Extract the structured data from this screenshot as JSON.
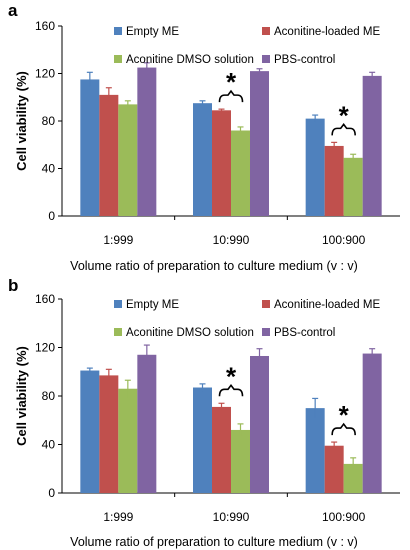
{
  "chart_data": [
    {
      "type": "bar",
      "panel": "a",
      "ylabel": "Cell viability (%)",
      "xlabel": "Volume ratio of preparation to culture medium (v : v)",
      "ylim": [
        0,
        160
      ],
      "yticks": [
        "0",
        "40",
        "80",
        "120",
        "160"
      ],
      "categories": [
        "1:999",
        "10:990",
        "100:900"
      ],
      "legend_position": "top",
      "series": [
        {
          "name": "Empty ME",
          "color": "#4f81bd",
          "values": [
            115,
            95,
            82
          ],
          "errors": [
            6,
            2,
            3
          ]
        },
        {
          "name": "Aconitine-loaded ME",
          "color": "#c0504d",
          "values": [
            102,
            89,
            59
          ],
          "errors": [
            6,
            1,
            3
          ]
        },
        {
          "name": "Aconitine DMSO solution",
          "color": "#9bbb59",
          "values": [
            94,
            72,
            49
          ],
          "errors": [
            3,
            3,
            3
          ]
        },
        {
          "name": "PBS-control",
          "color": "#8064a2",
          "values": [
            125,
            122,
            118
          ],
          "errors": [
            4,
            2,
            3
          ]
        }
      ],
      "annotations": [
        {
          "symbol": "*",
          "category": "10:990"
        },
        {
          "symbol": "*",
          "category": "100:900"
        }
      ]
    },
    {
      "type": "bar",
      "panel": "b",
      "ylabel": "Cell viability (%)",
      "xlabel": "Volume ratio of preparation to culture medium (v : v)",
      "ylim": [
        0,
        160
      ],
      "yticks": [
        "0",
        "40",
        "80",
        "120",
        "160"
      ],
      "categories": [
        "1:999",
        "10:990",
        "100:900"
      ],
      "legend_position": "top",
      "series": [
        {
          "name": "Empty ME",
          "color": "#4f81bd",
          "values": [
            101,
            87,
            70
          ],
          "errors": [
            2,
            3,
            8
          ]
        },
        {
          "name": "Aconitine-loaded ME",
          "color": "#c0504d",
          "values": [
            97,
            71,
            39
          ],
          "errors": [
            5,
            3,
            3
          ]
        },
        {
          "name": "Aconitine DMSO solution",
          "color": "#9bbb59",
          "values": [
            86,
            52,
            24
          ],
          "errors": [
            7,
            5,
            5
          ]
        },
        {
          "name": "PBS-control",
          "color": "#8064a2",
          "values": [
            114,
            113,
            115
          ],
          "errors": [
            8,
            6,
            4
          ]
        }
      ],
      "annotations": [
        {
          "symbol": "*",
          "category": "10:990"
        },
        {
          "symbol": "*",
          "category": "100:900"
        }
      ]
    }
  ]
}
